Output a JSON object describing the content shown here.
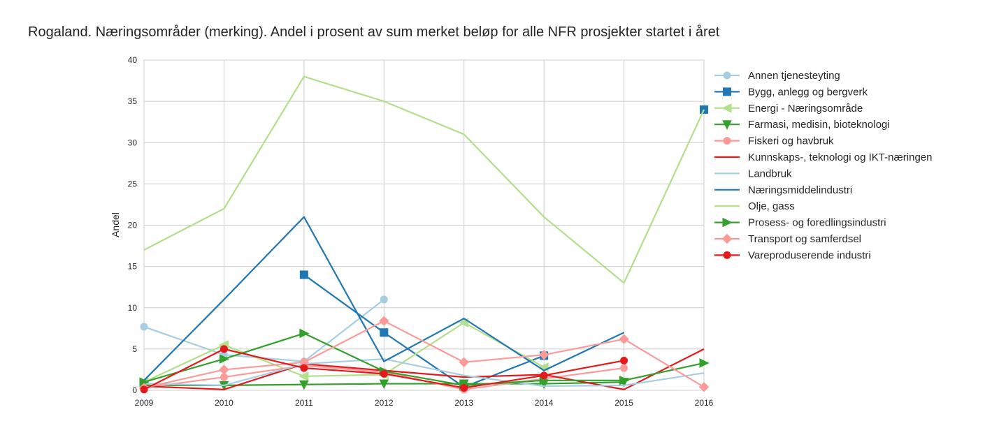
{
  "chart_data": {
    "type": "line",
    "title": "Rogaland. Næringsområder (merking). Andel i prosent av sum merket beløp for alle NFR prosjekter startet i året",
    "xlabel": "",
    "ylabel": "Andel",
    "x": [
      2009,
      2010,
      2011,
      2012,
      2013,
      2014,
      2015,
      2016
    ],
    "xticks": [
      "2009",
      "2010",
      "2011",
      "2012",
      "2013",
      "2014",
      "2015",
      "2016"
    ],
    "yticks": [
      "0",
      "5",
      "10",
      "15",
      "20",
      "25",
      "30",
      "35",
      "40"
    ],
    "xlim": [
      2009,
      2016
    ],
    "ylim": [
      0,
      40
    ],
    "grid": true,
    "legend_position": "right",
    "series": [
      {
        "name": "Annen tjenesteyting",
        "color": "#a6cee3",
        "marker": "circle",
        "values": [
          7.7,
          4.3,
          3.5,
          11.0,
          null,
          null,
          null,
          null
        ]
      },
      {
        "name": "Bygg, anlegg og bergverk",
        "color": "#1f78b4",
        "marker": "square",
        "values": [
          null,
          null,
          14.0,
          7.0,
          0.4,
          4.2,
          null,
          34.0
        ]
      },
      {
        "name": "Energi - Næringsområde",
        "color": "#b2df8a",
        "marker": "triangle-left",
        "values": [
          1.0,
          5.5,
          1.7,
          1.9,
          8.2,
          2.8,
          null,
          null
        ]
      },
      {
        "name": "Farmasi, medisin, bioteknologi",
        "color": "#33a02c",
        "marker": "triangle-down",
        "values": [
          0.6,
          0.6,
          0.7,
          0.8,
          0.8,
          0.8,
          1.0,
          null
        ]
      },
      {
        "name": "Fiskeri og havbruk",
        "color": "#fb9a99",
        "marker": "circle",
        "values": [
          0.3,
          1.6,
          3.0,
          2.2,
          0.1,
          1.4,
          2.7,
          null
        ]
      },
      {
        "name": "Kunnskaps-, teknologi og IKT-næringen",
        "color": "#e31a1c",
        "marker": "none",
        "values": [
          0.5,
          0.1,
          3.2,
          2.4,
          1.6,
          1.9,
          0.1,
          5.0
        ]
      },
      {
        "name": "Landbruk",
        "color": "#a6cee3",
        "marker": "none",
        "values": [
          0.8,
          0.6,
          3.2,
          3.8,
          1.8,
          0.5,
          0.6,
          2.1
        ]
      },
      {
        "name": "Næringsmiddelindustri",
        "color": "#1f78b4",
        "marker": "none",
        "values": [
          1.2,
          11.0,
          21.0,
          3.5,
          8.7,
          2.4,
          7.0,
          null
        ]
      },
      {
        "name": "Olje, gass",
        "color": "#b2df8a",
        "marker": "none",
        "values": [
          17.0,
          22.0,
          38.0,
          35.0,
          31.0,
          21.0,
          13.0,
          34.0
        ]
      },
      {
        "name": "Prosess- og foredlingsindustri",
        "color": "#33a02c",
        "marker": "triangle-right",
        "values": [
          1.0,
          3.8,
          6.9,
          2.3,
          0.6,
          1.2,
          1.2,
          3.3
        ]
      },
      {
        "name": "Transport og samferdsel",
        "color": "#fb9a99",
        "marker": "diamond",
        "values": [
          0.3,
          2.5,
          3.4,
          8.4,
          3.4,
          4.3,
          6.2,
          0.4
        ]
      },
      {
        "name": "Vareproduserende industri",
        "color": "#e31a1c",
        "marker": "circle",
        "values": [
          0.1,
          5.0,
          2.7,
          2.0,
          0.3,
          1.8,
          3.6,
          null
        ]
      }
    ]
  }
}
